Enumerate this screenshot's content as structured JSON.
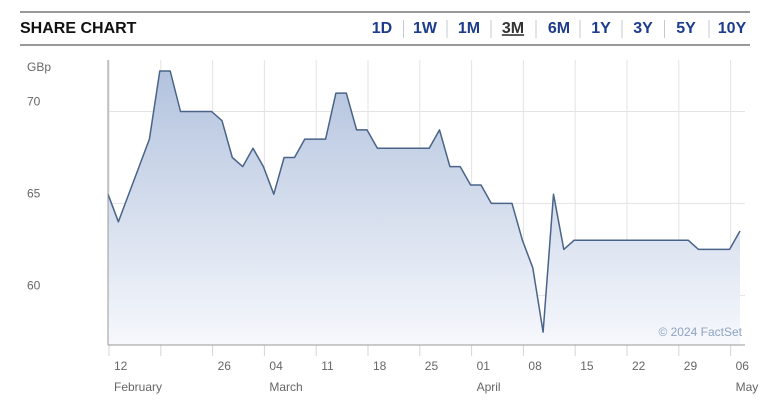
{
  "header": {
    "title": "SHARE CHART",
    "range_options": [
      "1D",
      "1W",
      "1M",
      "3M",
      "6M",
      "1Y",
      "3Y",
      "5Y",
      "10Y"
    ],
    "selected_range": "3M"
  },
  "chart_data": {
    "type": "area",
    "y_label": "GBp",
    "watermark": "© 2024 FactSet",
    "categories": [
      "12",
      null,
      null,
      null,
      null,
      null,
      null,
      null,
      null,
      null,
      "26",
      null,
      null,
      null,
      null,
      "04",
      null,
      null,
      null,
      null,
      "11",
      null,
      null,
      null,
      null,
      "18",
      null,
      null,
      null,
      null,
      "25",
      null,
      null,
      null,
      null,
      "01",
      null,
      null,
      null,
      null,
      "08",
      null,
      null,
      null,
      null,
      "15",
      null,
      null,
      null,
      null,
      "22",
      null,
      null,
      null,
      null,
      "29",
      null,
      null,
      null,
      null,
      "06",
      null
    ],
    "x_groups": [
      {
        "label": "February",
        "start": 0
      },
      {
        "label": "March",
        "start": 15
      },
      {
        "label": "April",
        "start": 35
      },
      {
        "label": "May",
        "start": 60
      }
    ],
    "values": [
      65.5,
      64.0,
      65.5,
      67.0,
      68.5,
      72.2,
      72.2,
      70.0,
      70.0,
      70.0,
      70.0,
      69.5,
      67.5,
      67.0,
      68.0,
      67.0,
      65.5,
      67.5,
      67.5,
      68.5,
      68.5,
      68.5,
      71.0,
      71.0,
      69.0,
      69.0,
      68.0,
      68.0,
      68.0,
      68.0,
      68.0,
      68.0,
      69.0,
      67.0,
      67.0,
      66.0,
      66.0,
      65.0,
      65.0,
      65.0,
      63.0,
      61.5,
      58.0,
      65.5,
      62.5,
      63.0,
      63.0,
      63.0,
      63.0,
      63.0,
      63.0,
      63.0,
      63.0,
      63.0,
      63.0,
      63.0,
      63.0,
      62.5,
      62.5,
      62.5,
      62.5,
      63.5
    ],
    "color": "#4a6388",
    "ylim": [
      57.3,
      72.8
    ],
    "yticks": [
      60,
      65,
      70
    ],
    "grid": true
  }
}
